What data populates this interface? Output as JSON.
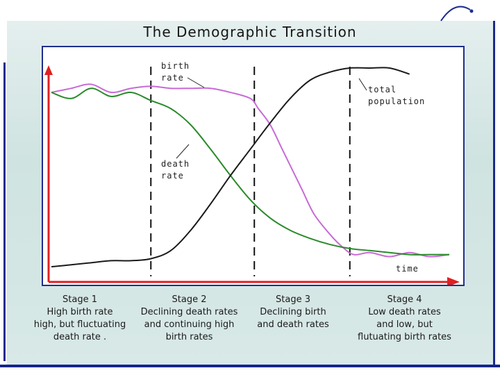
{
  "title": "The Demographic Transition",
  "chart_data": {
    "type": "line",
    "title": "The Demographic Transition",
    "xlabel": "time",
    "ylabel": "",
    "series": [
      {
        "name": "birth rate",
        "color": "#c86ad6",
        "points": [
          [
            0,
            88
          ],
          [
            5,
            90
          ],
          [
            10,
            92
          ],
          [
            15,
            88
          ],
          [
            20,
            90
          ],
          [
            25,
            91
          ],
          [
            30,
            90
          ],
          [
            35,
            90
          ],
          [
            40,
            90
          ],
          [
            45,
            88
          ],
          [
            50,
            85
          ],
          [
            52,
            80
          ],
          [
            55,
            72
          ],
          [
            58,
            60
          ],
          [
            60,
            52
          ],
          [
            63,
            40
          ],
          [
            66,
            28
          ],
          [
            70,
            18
          ],
          [
            73,
            12
          ],
          [
            76,
            8
          ],
          [
            80,
            9
          ],
          [
            85,
            7
          ],
          [
            90,
            9
          ],
          [
            95,
            7
          ],
          [
            100,
            8
          ]
        ]
      },
      {
        "name": "death rate",
        "color": "#2a8a2a",
        "points": [
          [
            0,
            88
          ],
          [
            5,
            85
          ],
          [
            10,
            90
          ],
          [
            15,
            86
          ],
          [
            20,
            88
          ],
          [
            25,
            84
          ],
          [
            30,
            80
          ],
          [
            35,
            72
          ],
          [
            40,
            60
          ],
          [
            45,
            47
          ],
          [
            50,
            35
          ],
          [
            55,
            26
          ],
          [
            60,
            20
          ],
          [
            65,
            16
          ],
          [
            70,
            13
          ],
          [
            75,
            11
          ],
          [
            80,
            10
          ],
          [
            85,
            9
          ],
          [
            90,
            8
          ],
          [
            95,
            8
          ],
          [
            100,
            8
          ]
        ]
      },
      {
        "name": "total population",
        "color": "#1a1a1a",
        "points": [
          [
            0,
            2
          ],
          [
            5,
            3
          ],
          [
            10,
            4
          ],
          [
            15,
            5
          ],
          [
            20,
            5
          ],
          [
            25,
            6
          ],
          [
            30,
            10
          ],
          [
            35,
            20
          ],
          [
            40,
            33
          ],
          [
            45,
            47
          ],
          [
            50,
            60
          ],
          [
            55,
            73
          ],
          [
            60,
            85
          ],
          [
            65,
            94
          ],
          [
            70,
            98
          ],
          [
            75,
            100
          ],
          [
            80,
            100
          ],
          [
            85,
            100
          ],
          [
            90,
            97
          ]
        ]
      }
    ],
    "stage_boundaries": [
      25,
      51,
      75
    ],
    "xlim": [
      0,
      100
    ],
    "ylim": [
      0,
      100
    ],
    "annotations": [
      "birth rate",
      "death rate",
      "total population",
      "time"
    ]
  },
  "labels": {
    "birth": [
      "birth",
      "rate"
    ],
    "death": [
      "death",
      "rate"
    ],
    "population": [
      "total",
      "population"
    ],
    "time": "time"
  },
  "stages": [
    {
      "title": "Stage 1",
      "desc": "High birth rate\nhigh, but fluctuating\ndeath rate   ."
    },
    {
      "title": "Stage 2",
      "desc": "Declining death rates\nand continuing high\nbirth rates"
    },
    {
      "title": "Stage 3",
      "desc": "Declining birth\nand death rates"
    },
    {
      "title": "Stage 4",
      "desc": "Low death rates\nand low, but\nflutuating birth rates"
    }
  ],
  "colors": {
    "axis": "#e02020",
    "frame": "#1f2e8f",
    "birth": "#c86ad6",
    "death": "#2a8a2a",
    "population": "#1a1a1a"
  }
}
